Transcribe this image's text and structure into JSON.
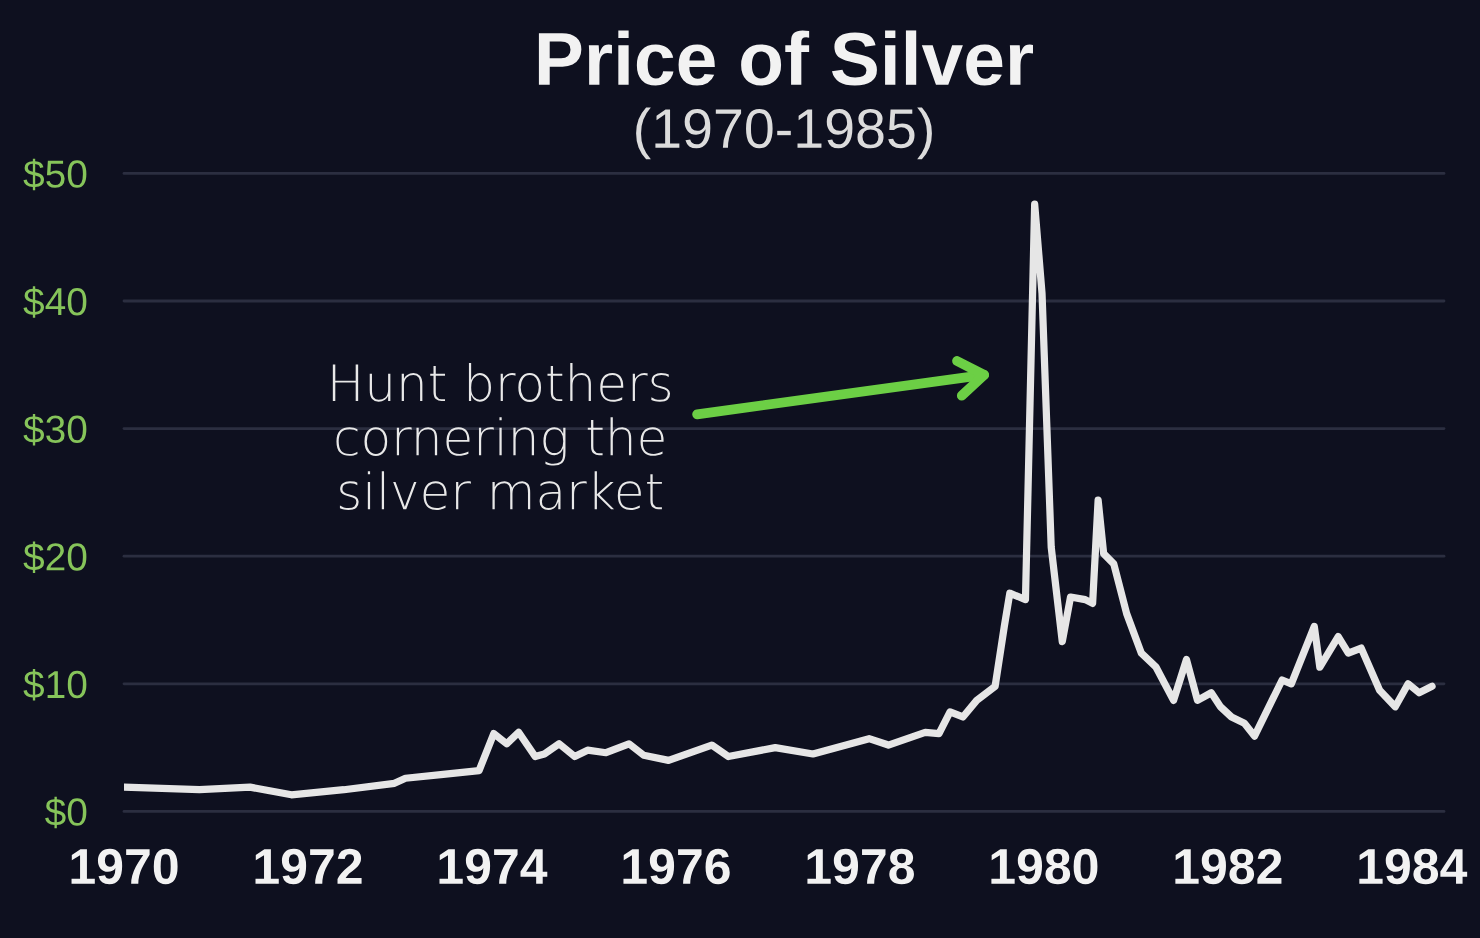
{
  "chart_data": {
    "type": "line",
    "title": "Price of Silver",
    "subtitle": "(1970-1985)",
    "x": [
      1970.0,
      1970.82,
      1971.37,
      1971.82,
      1972.39,
      1972.94,
      1973.06,
      1973.47,
      1973.86,
      1974.02,
      1974.16,
      1974.29,
      1974.47,
      1974.57,
      1974.73,
      1974.9,
      1975.04,
      1975.24,
      1975.49,
      1975.65,
      1975.92,
      1976.39,
      1976.57,
      1977.08,
      1977.49,
      1978.1,
      1978.31,
      1978.71,
      1978.86,
      1978.98,
      1979.12,
      1979.27,
      1979.47,
      1979.57,
      1979.63,
      1979.8,
      1979.9,
      1979.98,
      1980.08,
      1980.2,
      1980.29,
      1980.45,
      1980.53,
      1980.59,
      1980.65,
      1980.76,
      1980.9,
      1981.06,
      1981.22,
      1981.41,
      1981.55,
      1981.67,
      1981.82,
      1981.92,
      1982.04,
      1982.18,
      1982.29,
      1982.59,
      1982.69,
      1982.94,
      1983.0,
      1983.2,
      1983.31,
      1983.45,
      1983.65,
      1983.82,
      1983.96,
      1984.08,
      1984.22
    ],
    "series": [
      {
        "color": "#e6e6e6",
        "values": [
          1.9,
          1.7,
          1.9,
          1.3,
          1.7,
          2.2,
          2.6,
          2.9,
          3.2,
          6.1,
          5.3,
          6.2,
          4.3,
          4.5,
          5.3,
          4.3,
          4.8,
          4.6,
          5.3,
          4.4,
          4.0,
          5.2,
          4.3,
          5.0,
          4.5,
          5.7,
          5.2,
          6.2,
          6.1,
          7.8,
          7.4,
          8.7,
          9.8,
          14.5,
          17.1,
          16.6,
          47.6,
          40.6,
          20.7,
          13.3,
          16.8,
          16.6,
          16.3,
          24.4,
          20.2,
          19.4,
          15.5,
          12.4,
          11.3,
          8.7,
          11.9,
          8.7,
          9.3,
          8.2,
          7.4,
          6.9,
          5.9,
          10.3,
          10.0,
          14.5,
          11.3,
          13.7,
          12.4,
          12.8,
          9.5,
          8.2,
          10.0,
          9.3,
          9.8
        ]
      }
    ],
    "xlim": [
      1970,
      1984.35
    ],
    "xticks": [
      1970,
      1972,
      1974,
      1976,
      1978,
      1980,
      1982,
      1984
    ],
    "ylim": [
      0,
      50
    ],
    "yticks": [
      {
        "value": 0,
        "label": "$0"
      },
      {
        "value": 10,
        "label": "$10"
      },
      {
        "value": 20,
        "label": "$20"
      },
      {
        "value": 30,
        "label": "$30"
      },
      {
        "value": 40,
        "label": "$40"
      },
      {
        "value": 50,
        "label": "$50"
      }
    ],
    "grid": "y",
    "annotations": [
      "Hunt brothers\ncornering the\nsilver market"
    ]
  }
}
